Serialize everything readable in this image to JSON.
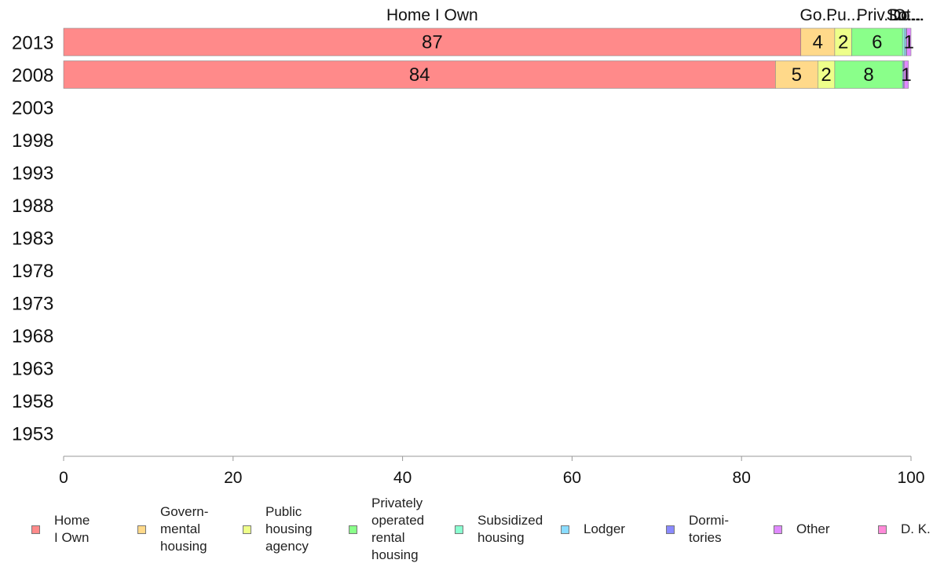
{
  "chart_data": {
    "type": "bar",
    "orientation": "horizontal",
    "stacked": true,
    "categories": [
      "2013",
      "2008",
      "2003",
      "1998",
      "1993",
      "1988",
      "1983",
      "1978",
      "1973",
      "1968",
      "1963",
      "1958",
      "1953"
    ],
    "series": [
      {
        "name": "Home\nI Own",
        "color": "#ff8a8a",
        "values": [
          87,
          84,
          null,
          null,
          null,
          null,
          null,
          null,
          null,
          null,
          null,
          null,
          null
        ]
      },
      {
        "name": "Govern-\nmental\nhousing",
        "color": "#ffd98a",
        "values": [
          4,
          5,
          null,
          null,
          null,
          null,
          null,
          null,
          null,
          null,
          null,
          null,
          null
        ]
      },
      {
        "name": "Public\nhousing\nagency",
        "color": "#eeff8a",
        "values": [
          2,
          2,
          null,
          null,
          null,
          null,
          null,
          null,
          null,
          null,
          null,
          null,
          null
        ]
      },
      {
        "name": "Privately\noperated\nrental\nhousing",
        "color": "#8aff8a",
        "values": [
          6,
          8,
          null,
          null,
          null,
          null,
          null,
          null,
          null,
          null,
          null,
          null,
          null
        ]
      },
      {
        "name": "Subsidized\nhousing",
        "color": "#8affd0",
        "values": [
          0.2,
          0,
          null,
          null,
          null,
          null,
          null,
          null,
          null,
          null,
          null,
          null,
          null
        ]
      },
      {
        "name": "Lodger",
        "color": "#8adcff",
        "values": [
          0.2,
          0.1,
          null,
          null,
          null,
          null,
          null,
          null,
          null,
          null,
          null,
          null,
          null
        ]
      },
      {
        "name": "Dormi-\ntories",
        "color": "#8a8aff",
        "values": [
          0.1,
          0.1,
          null,
          null,
          null,
          null,
          null,
          null,
          null,
          null,
          null,
          null,
          null
        ]
      },
      {
        "name": "Other",
        "color": "#e08aff",
        "values": [
          0.5,
          0.5,
          null,
          null,
          null,
          null,
          null,
          null,
          null,
          null,
          null,
          null,
          null
        ]
      },
      {
        "name": "D. K.",
        "color": "#ff8ad8",
        "values": [
          0,
          0,
          null,
          null,
          null,
          null,
          null,
          null,
          null,
          null,
          null,
          null,
          null
        ]
      }
    ],
    "data_labels": [
      [
        "87",
        "4",
        "2",
        "6",
        "",
        "",
        "",
        "1",
        ""
      ],
      [
        "84",
        "5",
        "2",
        "8",
        "",
        "",
        "",
        "1",
        ""
      ]
    ],
    "top_labels": [
      "Home I Own",
      "Go...",
      "Pu...",
      "Priv...",
      "Su...",
      "Lo...",
      "Do...",
      "Ot...",
      ""
    ],
    "xlim": [
      0,
      100
    ],
    "xticks": [
      "0",
      "20",
      "40",
      "60",
      "80",
      "100"
    ],
    "title": "",
    "xlabel": "",
    "ylabel": "",
    "grid": false,
    "legend_position": "bottom"
  }
}
